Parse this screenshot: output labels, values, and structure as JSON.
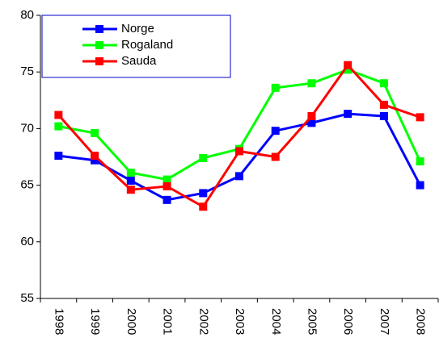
{
  "chart_data": {
    "type": "line",
    "categories": [
      "1998",
      "1999",
      "2000",
      "2001",
      "2002",
      "2003",
      "2004",
      "2005",
      "2006",
      "2007",
      "2008"
    ],
    "series": [
      {
        "name": "Norge",
        "color": "#0000ff",
        "values": [
          67.6,
          67.2,
          65.4,
          63.7,
          64.3,
          65.8,
          69.8,
          70.5,
          71.3,
          71.1,
          65.0
        ]
      },
      {
        "name": "Rogaland",
        "color": "#00ff00",
        "values": [
          70.2,
          69.6,
          66.1,
          65.5,
          67.4,
          68.2,
          73.6,
          74.0,
          75.2,
          74.0,
          67.1
        ]
      },
      {
        "name": "Sauda",
        "color": "#ff0000",
        "values": [
          71.2,
          67.6,
          64.6,
          64.9,
          63.1,
          68.0,
          67.5,
          71.1,
          75.6,
          72.1,
          71.0
        ]
      }
    ],
    "ylim": [
      55,
      80
    ],
    "yticks": [
      55,
      60,
      65,
      70,
      75,
      80
    ],
    "grid": false,
    "legend": "upper left"
  }
}
